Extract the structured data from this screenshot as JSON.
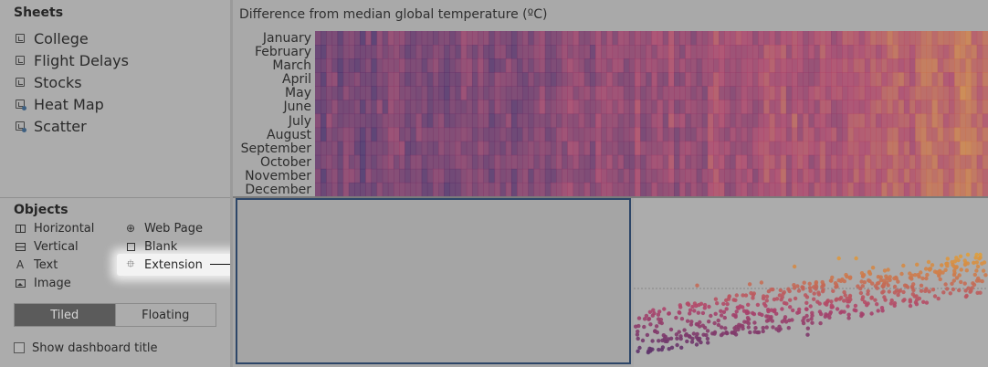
{
  "sheets": {
    "title": "Sheets",
    "items": [
      {
        "label": "College",
        "icon": "worksheet-icon"
      },
      {
        "label": "Flight Delays",
        "icon": "worksheet-icon"
      },
      {
        "label": "Stocks",
        "icon": "worksheet-icon"
      },
      {
        "label": "Heat Map",
        "icon": "worksheet-used-icon"
      },
      {
        "label": "Scatter",
        "icon": "worksheet-used-icon"
      }
    ]
  },
  "objects": {
    "title": "Objects",
    "horizontal": "Horizontal",
    "vertical": "Vertical",
    "text": "Text",
    "image": "Image",
    "web_page": "Web Page",
    "blank": "Blank",
    "extension": "Extension",
    "text_icon_glyph": "A",
    "web_icon_glyph": "⊕",
    "extension_icon_glyph": "⯐"
  },
  "layout_toggle": {
    "tiled": "Tiled",
    "floating": "Floating",
    "selected": "Tiled"
  },
  "show_dashboard_title": {
    "label": "Show dashboard title",
    "checked": false
  },
  "heatmap": {
    "title": "Difference from median global temperature (ºC)",
    "months": [
      "January",
      "February",
      "March",
      "April",
      "May",
      "June",
      "July",
      "August",
      "September",
      "October",
      "November",
      "December"
    ]
  },
  "colors": {
    "accent_border": "#2d4668",
    "tiled_active": "#5b5b5b",
    "heat_low": "#4a2f6b",
    "heat_mid": "#b0456b",
    "heat_high": "#e0a03a"
  }
}
